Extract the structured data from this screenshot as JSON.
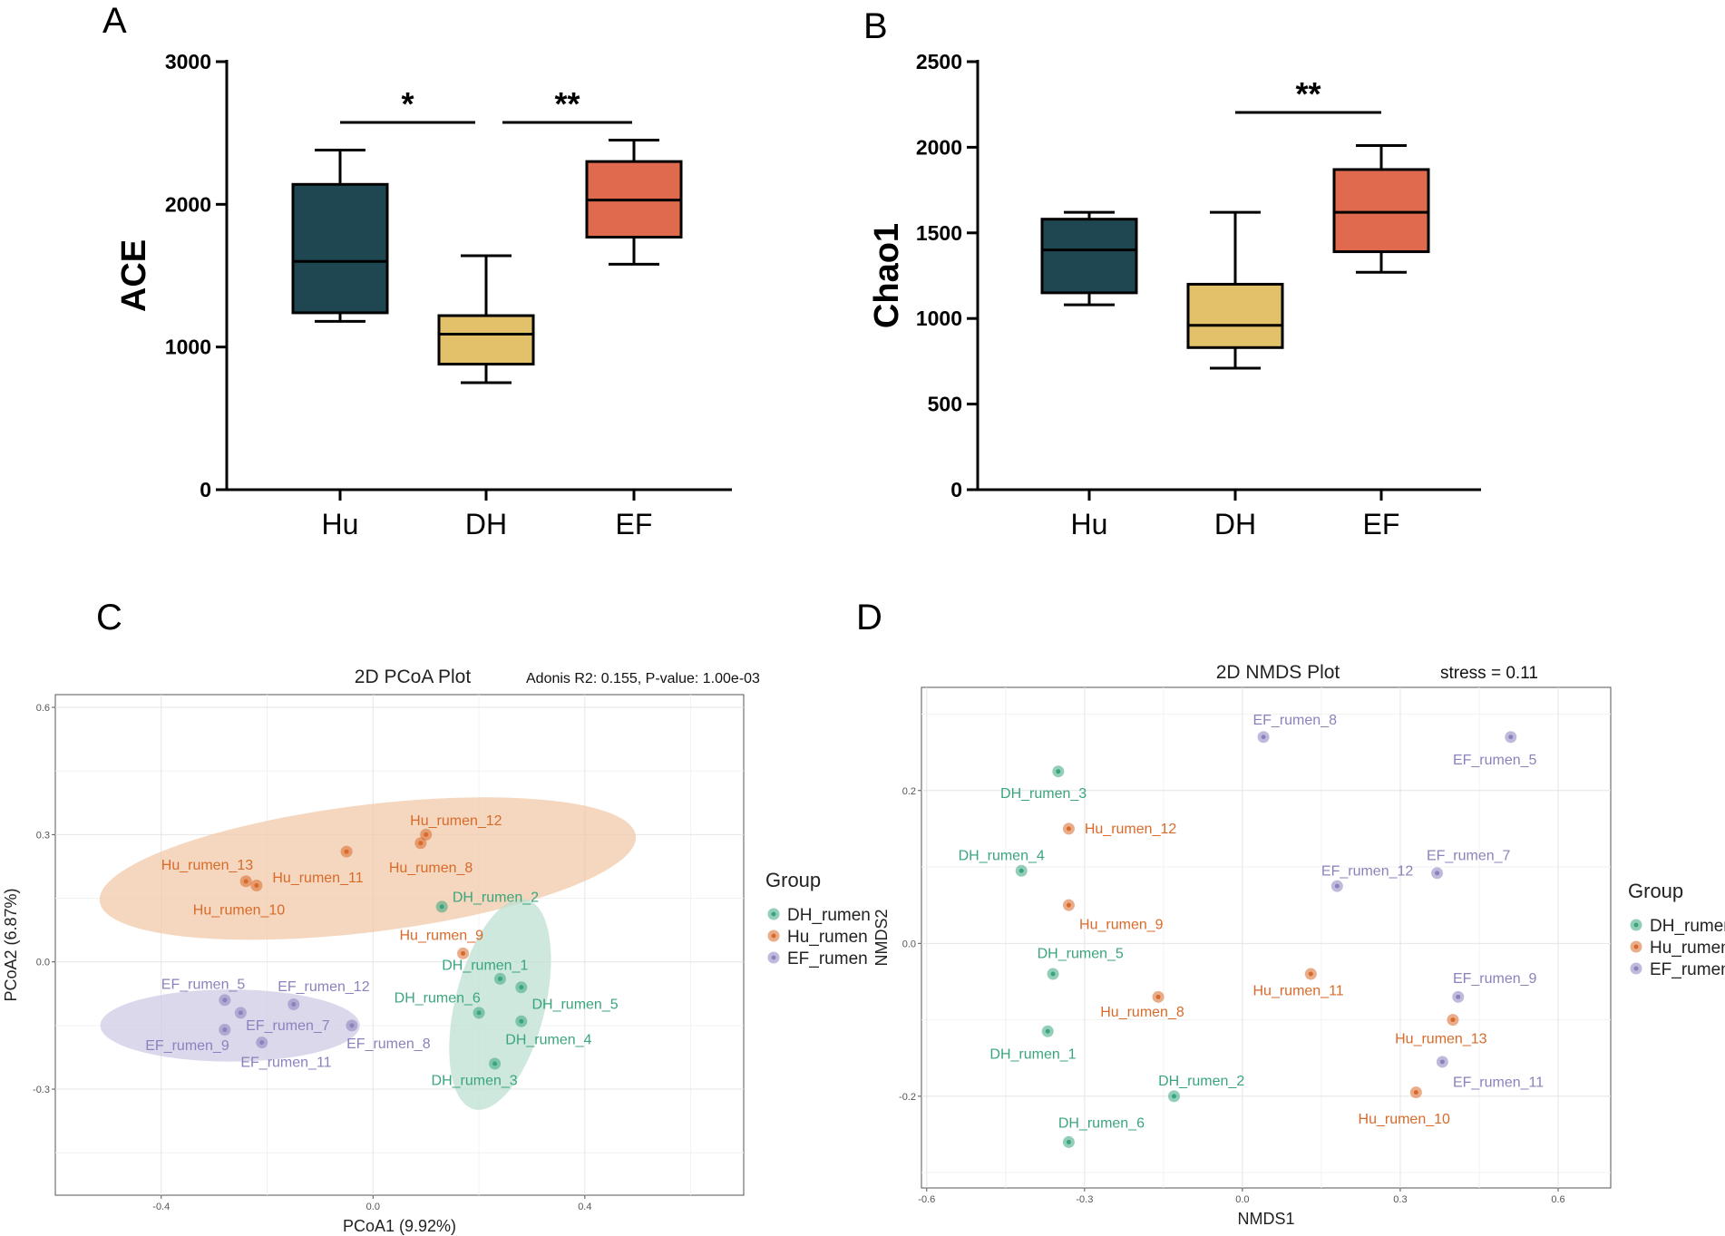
{
  "panels": {
    "a": "A",
    "b": "B",
    "c": "C",
    "d": "D"
  },
  "colors": {
    "hu_box": "#1f4752",
    "dh_box": "#e3c06a",
    "ef_box": "#df6a4e",
    "dh_pt": "#3aa57d",
    "hu_pt": "#d96a2a",
    "ef_pt": "#8b82bd",
    "hu_ellipse": "#f0c9a8",
    "ef_ellipse": "#cfcbe6",
    "dh_ellipse": "#bde0d2"
  },
  "chart_data": [
    {
      "id": "A",
      "type": "box",
      "ylabel": "ACE",
      "ylim": [
        0,
        3000
      ],
      "yticks": [
        "0",
        "1000",
        "2000",
        "3000"
      ],
      "categories": [
        "Hu",
        "DH",
        "EF"
      ],
      "boxes": [
        {
          "group": "Hu",
          "min": 1180,
          "q1": 1240,
          "median": 1600,
          "q3": 2140,
          "max": 2380
        },
        {
          "group": "DH",
          "min": 750,
          "q1": 880,
          "median": 1090,
          "q3": 1220,
          "max": 1640
        },
        {
          "group": "EF",
          "min": 1580,
          "q1": 1770,
          "median": 2030,
          "q3": 2300,
          "max": 2450
        }
      ],
      "significance": [
        {
          "from": "Hu",
          "to": "DH",
          "label": "*"
        },
        {
          "from": "DH",
          "to": "EF",
          "label": "**"
        }
      ]
    },
    {
      "id": "B",
      "type": "box",
      "ylabel": "Chao1",
      "ylim": [
        0,
        2500
      ],
      "yticks": [
        "0",
        "500",
        "1000",
        "1500",
        "2000",
        "2500"
      ],
      "categories": [
        "Hu",
        "DH",
        "EF"
      ],
      "boxes": [
        {
          "group": "Hu",
          "min": 1080,
          "q1": 1150,
          "median": 1400,
          "q3": 1580,
          "max": 1620
        },
        {
          "group": "DH",
          "min": 710,
          "q1": 830,
          "median": 960,
          "q3": 1200,
          "max": 1620
        },
        {
          "group": "EF",
          "min": 1270,
          "q1": 1390,
          "median": 1620,
          "q3": 1870,
          "max": 2010
        }
      ],
      "significance": [
        {
          "from": "DH",
          "to": "EF",
          "label": "**"
        }
      ]
    },
    {
      "id": "C",
      "type": "scatter",
      "title": "2D PCoA Plot",
      "annotation": "Adonis R2: 0.155, P-value: 1.00e-03",
      "xlabel": "PCoA1 (9.92%)",
      "ylabel": "PCoA2 (6.87%)",
      "xlim": [
        -0.6,
        0.7
      ],
      "ylim": [
        -0.55,
        0.63
      ],
      "xticks": [
        -0.4,
        0.0,
        0.4
      ],
      "yticks": [
        -0.3,
        0.0,
        0.3,
        0.6
      ],
      "xtick_labels": [
        "-0.4",
        "0.0",
        "0.4"
      ],
      "ytick_labels": [
        "-0.3",
        "0.0",
        "0.3",
        "0.6"
      ],
      "legend_title": "Group",
      "legend": [
        "DH_rumen",
        "Hu_rumen",
        "EF_rumen"
      ],
      "ellipses": [
        {
          "group": "Hu_rumen",
          "cx": -0.01,
          "cy": 0.22,
          "rx": 0.51,
          "ry": 0.15,
          "angle": 7
        },
        {
          "group": "EF_rumen",
          "cx": -0.27,
          "cy": -0.15,
          "rx": 0.245,
          "ry": 0.085,
          "angle": 0
        },
        {
          "group": "DH_rumen",
          "cx": 0.24,
          "cy": -0.1,
          "rx": 0.085,
          "ry": 0.255,
          "angle": -14
        }
      ],
      "points": [
        {
          "label": "Hu_rumen_12",
          "group": "Hu_rumen",
          "x": 0.1,
          "y": 0.3,
          "lx": 0.07,
          "ly": 0.333
        },
        {
          "label": "Hu_rumen_8",
          "group": "Hu_rumen",
          "x": 0.09,
          "y": 0.28,
          "lx": 0.03,
          "ly": 0.222
        },
        {
          "label": "Hu_rumen_11",
          "group": "Hu_rumen",
          "x": -0.05,
          "y": 0.26,
          "lx": -0.19,
          "ly": 0.198
        },
        {
          "label": "Hu_rumen_13",
          "group": "Hu_rumen",
          "x": -0.24,
          "y": 0.19,
          "lx": -0.4,
          "ly": 0.228
        },
        {
          "label": "Hu_rumen_10",
          "group": "Hu_rumen",
          "x": -0.22,
          "y": 0.18,
          "lx": -0.34,
          "ly": 0.122
        },
        {
          "label": "Hu_rumen_9",
          "group": "Hu_rumen",
          "x": 0.17,
          "y": 0.02,
          "lx": 0.05,
          "ly": 0.062
        },
        {
          "label": "DH_rumen_2",
          "group": "DH_rumen",
          "x": 0.13,
          "y": 0.13,
          "lx": 0.15,
          "ly": 0.152
        },
        {
          "label": "DH_rumen_1",
          "group": "DH_rumen",
          "x": 0.24,
          "y": -0.04,
          "lx": 0.13,
          "ly": -0.008
        },
        {
          "label": "DH_rumen_6",
          "group": "DH_rumen",
          "x": 0.2,
          "y": -0.12,
          "lx": 0.04,
          "ly": -0.085
        },
        {
          "label": "DH_rumen_5",
          "group": "DH_rumen",
          "x": 0.28,
          "y": -0.06,
          "lx": 0.3,
          "ly": -0.1
        },
        {
          "label": "DH_rumen_4",
          "group": "DH_rumen",
          "x": 0.28,
          "y": -0.14,
          "lx": 0.25,
          "ly": -0.183
        },
        {
          "label": "DH_rumen_3",
          "group": "DH_rumen",
          "x": 0.23,
          "y": -0.24,
          "lx": 0.11,
          "ly": -0.28
        },
        {
          "label": "EF_rumen_5",
          "group": "EF_rumen",
          "x": -0.28,
          "y": -0.09,
          "lx": -0.4,
          "ly": -0.053
        },
        {
          "label": "EF_rumen_12",
          "group": "EF_rumen",
          "x": -0.15,
          "y": -0.1,
          "lx": -0.18,
          "ly": -0.058
        },
        {
          "label": "EF_rumen_7",
          "group": "EF_rumen",
          "x": -0.25,
          "y": -0.12,
          "lx": -0.24,
          "ly": -0.15
        },
        {
          "label": "EF_rumen_8",
          "group": "EF_rumen",
          "x": -0.04,
          "y": -0.15,
          "lx": -0.05,
          "ly": -0.193
        },
        {
          "label": "EF_rumen_9",
          "group": "EF_rumen",
          "x": -0.28,
          "y": -0.16,
          "lx": -0.43,
          "ly": -0.197
        },
        {
          "label": "EF_rumen_11",
          "group": "EF_rumen",
          "x": -0.21,
          "y": -0.19,
          "lx": -0.25,
          "ly": -0.237
        }
      ]
    },
    {
      "id": "D",
      "type": "scatter",
      "title": "2D NMDS Plot",
      "annotation": "stress =  0.11",
      "xlabel": "NMDS1",
      "ylabel": "NMDS2",
      "xlim": [
        -0.61,
        0.7
      ],
      "ylim": [
        -0.32,
        0.335
      ],
      "xticks": [
        -0.6,
        -0.3,
        0.0,
        0.3,
        0.6
      ],
      "yticks": [
        -0.2,
        0.0,
        0.2
      ],
      "xtick_labels": [
        "-0.6",
        "-0.3",
        "0.0",
        "0.3",
        "0.6"
      ],
      "ytick_labels": [
        "-0.2",
        "0.0",
        "0.2"
      ],
      "legend_title": "Group",
      "legend": [
        "DH_rumen",
        "Hu_rumen",
        "EF_rumen"
      ],
      "points": [
        {
          "label": "EF_rumen_8",
          "group": "EF_rumen",
          "x": 0.04,
          "y": 0.27,
          "lx": 0.02,
          "ly": 0.292
        },
        {
          "label": "EF_rumen_5",
          "group": "EF_rumen",
          "x": 0.51,
          "y": 0.27,
          "lx": 0.4,
          "ly": 0.24
        },
        {
          "label": "DH_rumen_3",
          "group": "DH_rumen",
          "x": -0.35,
          "y": 0.225,
          "lx": -0.46,
          "ly": 0.196
        },
        {
          "label": "Hu_rumen_12",
          "group": "Hu_rumen",
          "x": -0.33,
          "y": 0.15,
          "lx": -0.3,
          "ly": 0.15
        },
        {
          "label": "DH_rumen_4",
          "group": "DH_rumen",
          "x": -0.42,
          "y": 0.095,
          "lx": -0.54,
          "ly": 0.115
        },
        {
          "label": "EF_rumen_12",
          "group": "EF_rumen",
          "x": 0.18,
          "y": 0.075,
          "lx": 0.15,
          "ly": 0.095
        },
        {
          "label": "EF_rumen_7",
          "group": "EF_rumen",
          "x": 0.37,
          "y": 0.092,
          "lx": 0.35,
          "ly": 0.115
        },
        {
          "label": "Hu_rumen_9",
          "group": "Hu_rumen",
          "x": -0.33,
          "y": 0.05,
          "lx": -0.31,
          "ly": 0.025
        },
        {
          "label": "DH_rumen_5",
          "group": "DH_rumen",
          "x": -0.36,
          "y": -0.04,
          "lx": -0.39,
          "ly": -0.013
        },
        {
          "label": "Hu_rumen_11",
          "group": "Hu_rumen",
          "x": 0.13,
          "y": -0.04,
          "lx": 0.02,
          "ly": -0.062
        },
        {
          "label": "Hu_rumen_8",
          "group": "Hu_rumen",
          "x": -0.16,
          "y": -0.07,
          "lx": -0.27,
          "ly": -0.09
        },
        {
          "label": "EF_rumen_9",
          "group": "EF_rumen",
          "x": 0.41,
          "y": -0.07,
          "lx": 0.4,
          "ly": -0.046
        },
        {
          "label": "Hu_rumen_13",
          "group": "Hu_rumen",
          "x": 0.4,
          "y": -0.1,
          "lx": 0.29,
          "ly": -0.125
        },
        {
          "label": "DH_rumen_1",
          "group": "DH_rumen",
          "x": -0.37,
          "y": -0.115,
          "lx": -0.48,
          "ly": -0.145
        },
        {
          "label": "EF_rumen_11",
          "group": "EF_rumen",
          "x": 0.38,
          "y": -0.155,
          "lx": 0.4,
          "ly": -0.182
        },
        {
          "label": "DH_rumen_2",
          "group": "DH_rumen",
          "x": -0.13,
          "y": -0.2,
          "lx": -0.16,
          "ly": -0.18
        },
        {
          "label": "Hu_rumen_10",
          "group": "Hu_rumen",
          "x": 0.33,
          "y": -0.195,
          "lx": 0.22,
          "ly": -0.23
        },
        {
          "label": "DH_rumen_6",
          "group": "DH_rumen",
          "x": -0.33,
          "y": -0.26,
          "lx": -0.35,
          "ly": -0.235
        }
      ]
    }
  ]
}
